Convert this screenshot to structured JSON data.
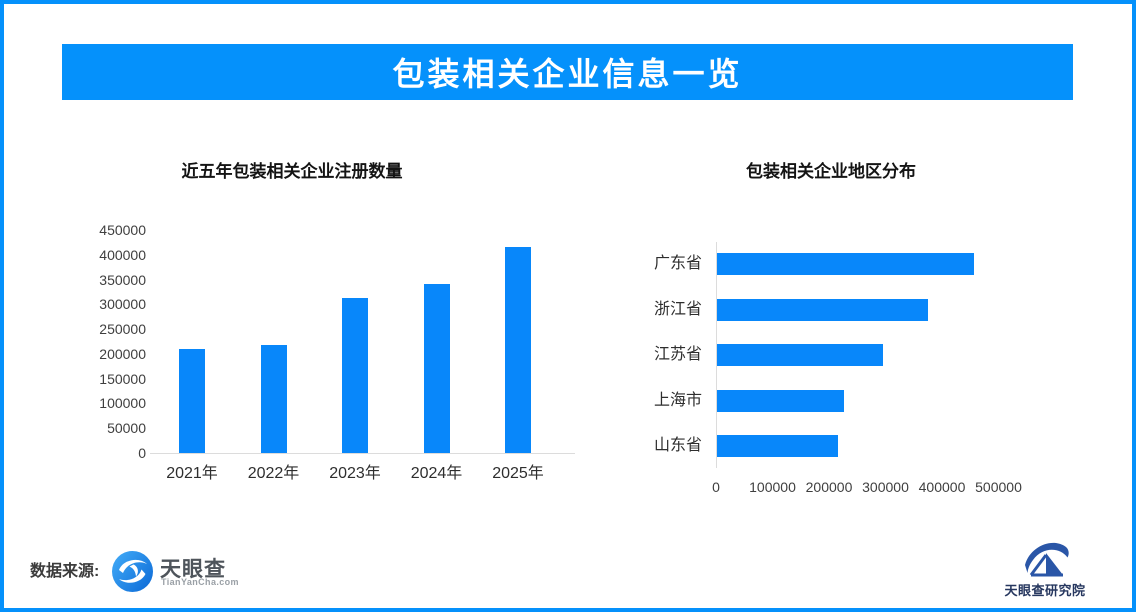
{
  "header": {
    "title": "包装相关企业信息一览"
  },
  "colors": {
    "accent_blue": "#0591FB",
    "bar_blue": "#0887FA",
    "axis_gray": "#DCDCDC",
    "tick_text": "#3F3F3F",
    "logo_blue": "#2A56A7",
    "banner_text": "#FFFFFF"
  },
  "chart_data": [
    {
      "type": "bar",
      "orientation": "vertical",
      "title": "近五年包装相关企业注册数量",
      "categories": [
        "2021年",
        "2022年",
        "2023年",
        "2024年",
        "2025年"
      ],
      "values": [
        210000,
        217000,
        312000,
        342000,
        415000
      ],
      "xlabel": "",
      "ylabel": "",
      "ylim": [
        0,
        450000
      ],
      "ytick_step": 50000,
      "grid": false,
      "legend": false
    },
    {
      "type": "bar",
      "orientation": "horizontal",
      "title": "包装相关企业地区分布",
      "categories": [
        "广东省",
        "浙江省",
        "江苏省",
        "上海市",
        "山东省"
      ],
      "values": [
        455000,
        374000,
        294000,
        225000,
        214000
      ],
      "xlabel": "",
      "ylabel": "",
      "xlim": [
        0,
        500000
      ],
      "xtick_step": 100000,
      "grid": false,
      "legend": false
    }
  ],
  "footer": {
    "source_label": "数据来源:",
    "tianyancha_name": "天眼查",
    "tianyancha_url": "TianYanCha.com",
    "institute_name": "天眼查研究院",
    "tianyancha_logo_icon": "eye-swirl-icon",
    "institute_logo_icon": "mountain-swoosh-icon"
  }
}
